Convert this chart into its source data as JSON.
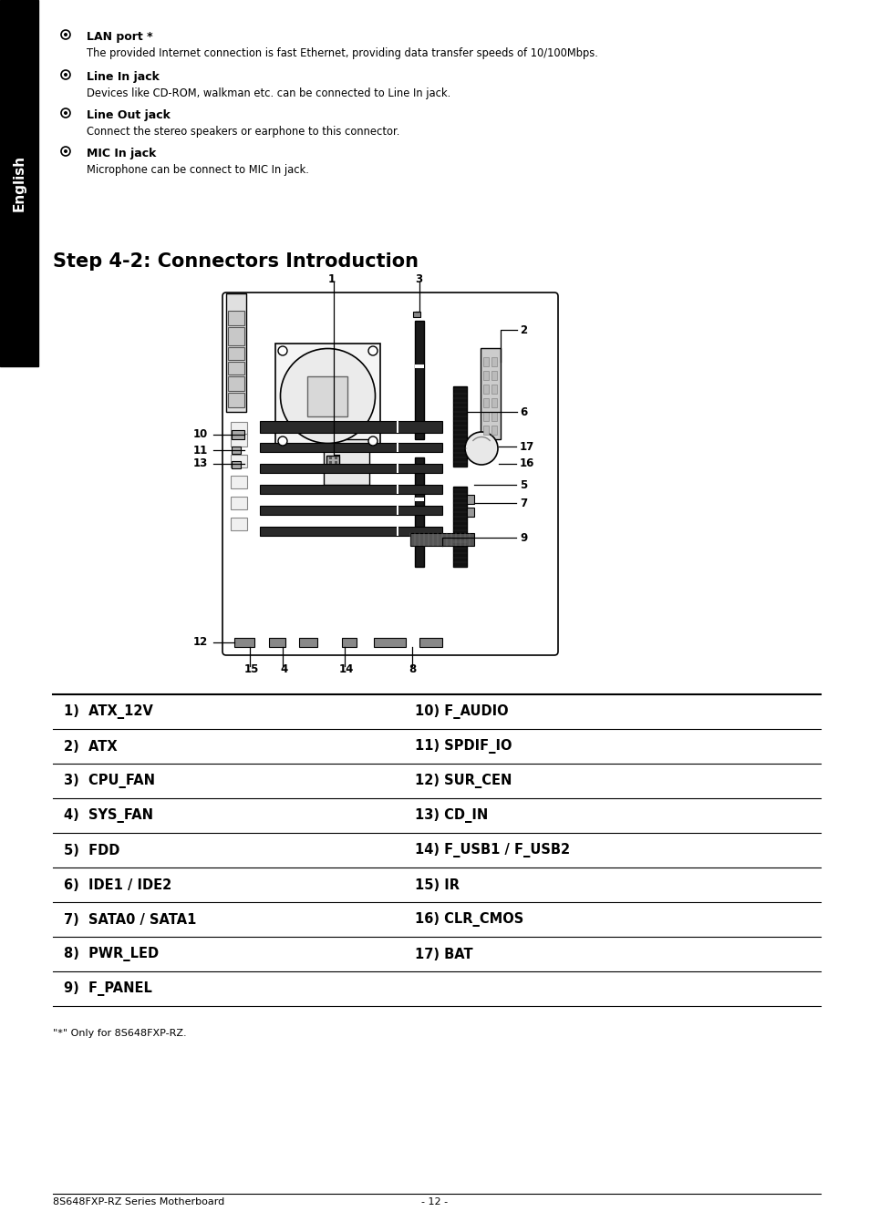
{
  "page_bg": "#ffffff",
  "sidebar_bg": "#000000",
  "sidebar_text": "English",
  "sidebar_text_color": "#ffffff",
  "title_section": "Step 4-2: Connectors Introduction",
  "bullets": [
    {
      "title": "LAN port *",
      "text": "The provided Internet connection is fast Ethernet, providing data transfer speeds of 10/100Mbps."
    },
    {
      "title": "Line In jack",
      "text": "Devices like CD-ROM, walkman etc. can be connected to Line In jack."
    },
    {
      "title": "Line Out jack",
      "text": "Connect the stereo speakers or earphone to this connector."
    },
    {
      "title": "MIC In jack",
      "text": "Microphone can be connect to MIC In jack."
    }
  ],
  "table_rows": [
    [
      "1)  ATX_12V",
      "10) F_AUDIO"
    ],
    [
      "2)  ATX",
      "11) SPDIF_IO"
    ],
    [
      "3)  CPU_FAN",
      "12) SUR_CEN"
    ],
    [
      "4)  SYS_FAN",
      "13) CD_IN"
    ],
    [
      "5)  FDD",
      "14) F_USB1 / F_USB2"
    ],
    [
      "6)  IDE1 / IDE2",
      "15) IR"
    ],
    [
      "7)  SATA0 / SATA1",
      "16) CLR_CMOS"
    ],
    [
      "8)  PWR_LED",
      "17) BAT"
    ],
    [
      "9)  F_PANEL",
      ""
    ]
  ],
  "footnote": "\"*\" Only for 8S648FXP-RZ.",
  "footer_left": "8S648FXP-RZ Series Motherboard",
  "footer_center": "- 12 -"
}
